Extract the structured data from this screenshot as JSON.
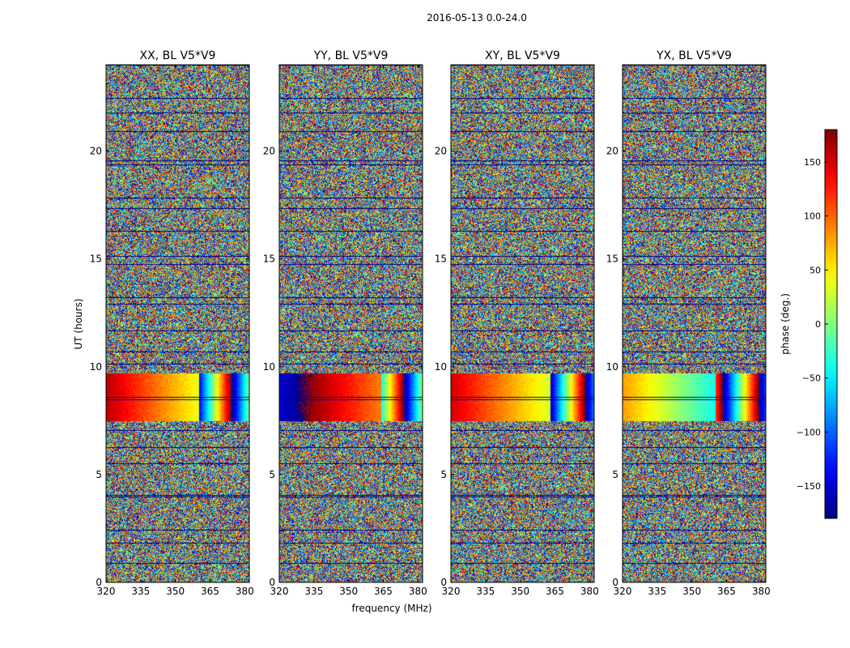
{
  "chart_data": {
    "type": "heatmap",
    "suptitle": "2016-05-13 0.0-24.0",
    "xlabel": "frequency (MHz)",
    "ylabel": "UT (hours)",
    "xlim": [
      320,
      382
    ],
    "ylim": [
      0,
      24
    ],
    "xticks": [
      320,
      335,
      350,
      365,
      380
    ],
    "yticks": [
      0,
      5,
      10,
      15,
      20
    ],
    "panels": [
      {
        "title": "XX, BL V5*V9",
        "feature": [
          {
            "t0": 7.5,
            "t1": 9.7,
            "f_split": 360,
            "phase_low": 160,
            "phase_high": -140
          }
        ]
      },
      {
        "title": "YY, BL V5*V9",
        "feature": [
          {
            "t0": 7.5,
            "t1": 9.7,
            "f_split": 364,
            "phase_low": -150,
            "phase_high": -40
          }
        ]
      },
      {
        "title": "XY, BL V5*V9",
        "feature": [
          {
            "t0": 7.5,
            "t1": 9.7,
            "f_split": 363,
            "phase_low": 150,
            "phase_high": -160
          }
        ]
      },
      {
        "title": "YX, BL V5*V9",
        "feature": [
          {
            "t0": 7.5,
            "t1": 9.7,
            "f_split": 360,
            "phase_low": 80,
            "phase_high": 110
          }
        ]
      }
    ],
    "colorbar": {
      "label": "phase (deg.)",
      "range": [
        -180,
        180
      ],
      "ticks": [
        -150,
        -100,
        -50,
        0,
        50,
        100,
        150
      ],
      "colormap": "jet"
    }
  }
}
